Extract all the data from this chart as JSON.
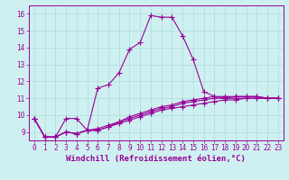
{
  "xlabel": "Windchill (Refroidissement éolien,°C)",
  "ylabel": "",
  "bg_color": "#cff0f0",
  "line_color": "#990099",
  "xlim": [
    -0.5,
    23.5
  ],
  "ylim": [
    8.5,
    16.5
  ],
  "yticks": [
    9,
    10,
    11,
    12,
    13,
    14,
    15,
    16
  ],
  "xticks": [
    0,
    1,
    2,
    3,
    4,
    5,
    6,
    7,
    8,
    9,
    10,
    11,
    12,
    13,
    14,
    15,
    16,
    17,
    18,
    19,
    20,
    21,
    22,
    23
  ],
  "series1_x": [
    0,
    1,
    2,
    3,
    4,
    5,
    6,
    7,
    8,
    9,
    10,
    11,
    12,
    13,
    14,
    15,
    16,
    17,
    18,
    19,
    20,
    21,
    22,
    23
  ],
  "series1_y": [
    9.8,
    8.7,
    8.7,
    9.8,
    9.8,
    9.1,
    11.6,
    11.8,
    12.5,
    13.9,
    14.3,
    15.9,
    15.8,
    15.8,
    14.7,
    13.3,
    11.4,
    11.1,
    11.0,
    11.1,
    11.1,
    11.1,
    11.0,
    11.0
  ],
  "series2_x": [
    0,
    1,
    2,
    3,
    4,
    5,
    6,
    7,
    8,
    9,
    10,
    11,
    12,
    13,
    14,
    15,
    16,
    17,
    18,
    19,
    20,
    21,
    22,
    23
  ],
  "series2_y": [
    9.8,
    8.7,
    8.7,
    9.0,
    8.9,
    9.1,
    9.1,
    9.3,
    9.5,
    9.7,
    9.9,
    10.1,
    10.3,
    10.4,
    10.5,
    10.6,
    10.7,
    10.8,
    10.9,
    10.9,
    11.0,
    11.0,
    11.0,
    11.0
  ],
  "series3_x": [
    0,
    1,
    2,
    3,
    4,
    5,
    6,
    7,
    8,
    9,
    10,
    11,
    12,
    13,
    14,
    15,
    16,
    17,
    18,
    19,
    20,
    21,
    22,
    23
  ],
  "series3_y": [
    9.8,
    8.7,
    8.7,
    9.0,
    8.9,
    9.1,
    9.2,
    9.4,
    9.6,
    9.8,
    10.0,
    10.2,
    10.4,
    10.5,
    10.7,
    10.8,
    10.9,
    11.0,
    11.0,
    11.0,
    11.0,
    11.0,
    11.0,
    11.0
  ],
  "series4_x": [
    0,
    1,
    2,
    3,
    4,
    5,
    6,
    7,
    8,
    9,
    10,
    11,
    12,
    13,
    14,
    15,
    16,
    17,
    18,
    19,
    20,
    21,
    22,
    23
  ],
  "series4_y": [
    9.8,
    8.7,
    8.7,
    9.0,
    8.9,
    9.1,
    9.1,
    9.3,
    9.6,
    9.9,
    10.1,
    10.3,
    10.5,
    10.6,
    10.8,
    10.9,
    11.0,
    11.1,
    11.1,
    11.1,
    11.1,
    11.1,
    11.0,
    11.0
  ],
  "marker": "+",
  "markersize": 4,
  "linewidth": 0.8,
  "tick_fontsize": 5.5,
  "xlabel_fontsize": 6.5,
  "grid_color": "#aadddd",
  "spine_color": "#990099"
}
